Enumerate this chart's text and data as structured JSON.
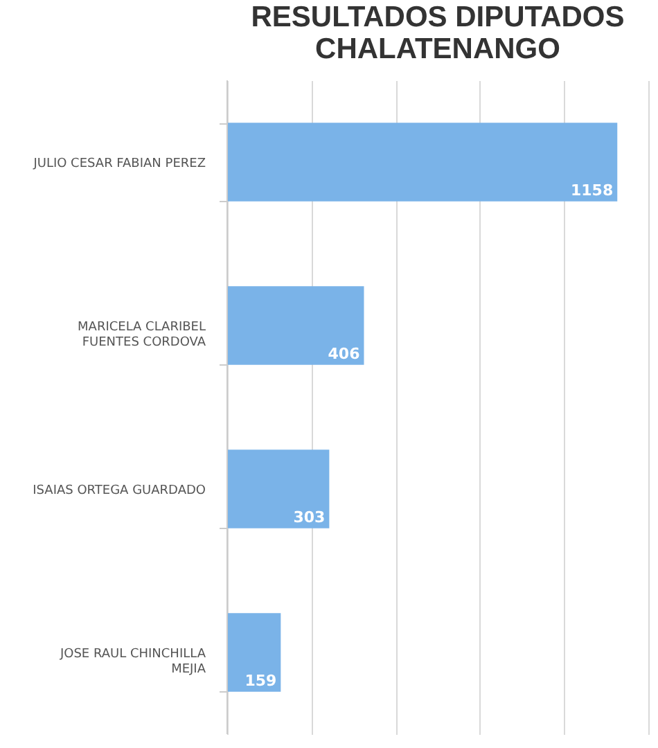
{
  "chart_data": {
    "type": "bar",
    "orientation": "horizontal",
    "title": "RESULTADOS DIPUTADOS CHALATENANGO",
    "categories": [
      "JULIO CESAR FABIAN PEREZ",
      "MARICELA CLARIBEL FUENTES CORDOVA",
      "ISAIAS ORTEGA GUARDADO",
      "JOSE RAUL CHINCHILLA MEJIA"
    ],
    "values": [
      1158,
      406,
      303,
      159
    ],
    "color": "#7ab3e8",
    "xlim": [
      0,
      1250
    ],
    "xticks": [
      {
        "value": 0,
        "label": null
      },
      {
        "value": 250,
        "label": null
      },
      {
        "value": 500,
        "label": null
      },
      {
        "value": 750,
        "label": null
      },
      {
        "value": 1000,
        "label": null
      },
      {
        "value": 1250,
        "label": null
      }
    ],
    "tick_labels": "y",
    "grid": "x",
    "data_labels": true
  }
}
